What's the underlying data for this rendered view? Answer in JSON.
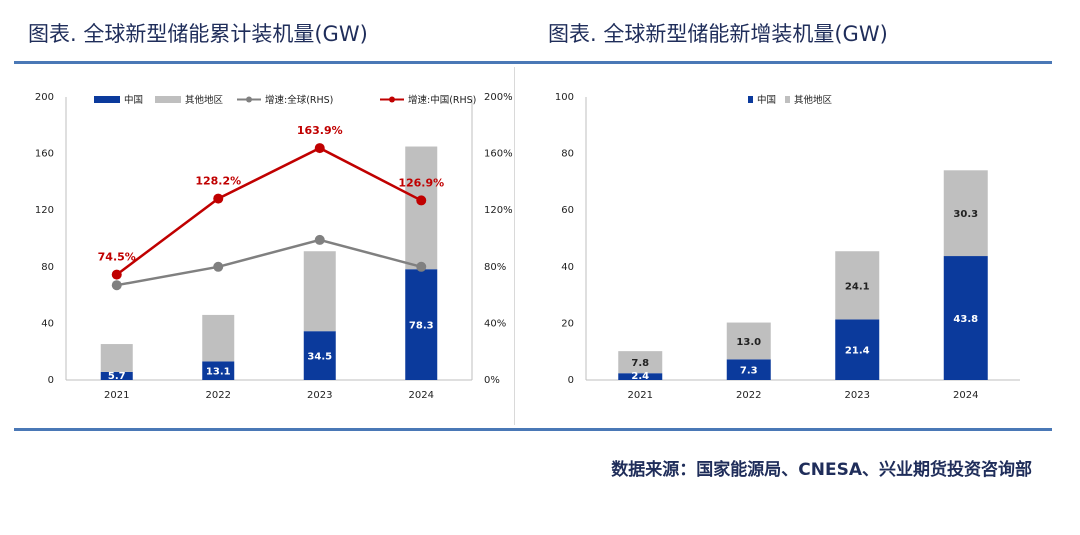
{
  "header": {
    "left_title": "图表. 全球新型储能累计装机量(GW)",
    "right_title": "图表. 全球新型储能新增装机量(GW)"
  },
  "footer": {
    "source": "数据来源：国家能源局、CNESA、兴业期货投资咨询部"
  },
  "colors": {
    "china": "#0b3a9c",
    "other": "#bfbfbf",
    "growth_global": "#808080",
    "growth_china": "#c00000",
    "rule": "#4a78b6"
  },
  "chart_data": [
    {
      "type": "bar",
      "stacked": true,
      "categories": [
        "2021",
        "2022",
        "2023",
        "2024"
      ],
      "series": [
        {
          "name": "中国",
          "values": [
            5.7,
            13.1,
            34.5,
            78.3
          ],
          "show_labels": true
        },
        {
          "name": "其他地区",
          "values": [
            19.7,
            32.9,
            56.5,
            86.7
          ],
          "show_labels": false
        }
      ],
      "lines": [
        {
          "name": "增速:全球(RHS)",
          "axis": "right",
          "values": [
            67,
            80,
            99,
            80
          ],
          "show_labels": false
        },
        {
          "name": "增速:中国(RHS)",
          "axis": "right",
          "values": [
            74.5,
            128.2,
            163.9,
            126.9
          ],
          "labels": [
            "74.5%",
            "128.2%",
            "163.9%",
            "126.9%"
          ],
          "show_labels": true
        }
      ],
      "ylim": [
        0,
        200
      ],
      "yticks": [
        "0",
        "40",
        "80",
        "120",
        "160",
        "200"
      ],
      "ylim_right": [
        0,
        200
      ],
      "yticks_right": [
        "0%",
        "40%",
        "80%",
        "120%",
        "160%",
        "200%"
      ],
      "legend": "top",
      "grid": false
    },
    {
      "type": "bar",
      "stacked": true,
      "categories": [
        "2021",
        "2022",
        "2023",
        "2024"
      ],
      "series": [
        {
          "name": "中国",
          "values": [
            2.4,
            7.3,
            21.4,
            43.8
          ],
          "labels": [
            "2.4",
            "7.3",
            "21.4",
            "43.8"
          ]
        },
        {
          "name": "其他地区",
          "values": [
            7.8,
            13.0,
            24.1,
            30.3
          ],
          "labels": [
            "7.8",
            "13.0",
            "24.1",
            "30.3"
          ]
        }
      ],
      "ylim": [
        0,
        100
      ],
      "yticks": [
        "0",
        "20",
        "40",
        "60",
        "80",
        "100"
      ],
      "legend": "top",
      "grid": false
    }
  ]
}
